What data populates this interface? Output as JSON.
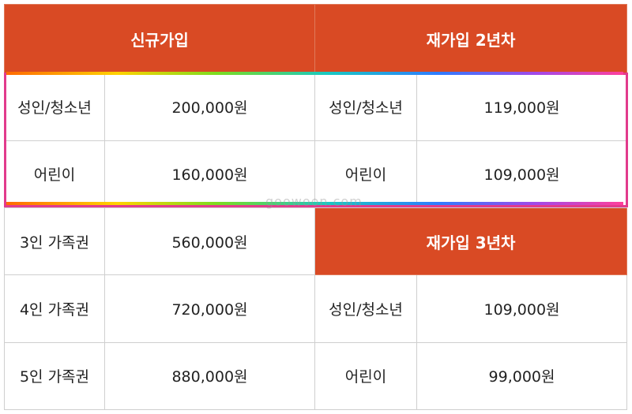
{
  "headers": {
    "new_join": "신규가입",
    "rejoin_2nd": "재가입 2년차",
    "rejoin_3rd": "재가입 3년차"
  },
  "new_join_rows": [
    {
      "label": "성인/청소년",
      "price": "200,000원"
    },
    {
      "label": "어린이",
      "price": "160,000원"
    },
    {
      "label": "3인 가족권",
      "price": "560,000원"
    },
    {
      "label": "4인 가족권",
      "price": "720,000원"
    },
    {
      "label": "5인 가족권",
      "price": "880,000원"
    }
  ],
  "rejoin_2nd_rows": [
    {
      "label": "성인/청소년",
      "price": "119,000원"
    },
    {
      "label": "어린이",
      "price": "109,000원"
    }
  ],
  "rejoin_3rd_rows": [
    {
      "label": "성인/청소년",
      "price": "109,000원"
    },
    {
      "label": "어린이",
      "price": "99,000원"
    }
  ],
  "watermark": "goowoon.com",
  "colors": {
    "header_bg": "#d94a24",
    "highlight_border": "#e23b8c"
  }
}
